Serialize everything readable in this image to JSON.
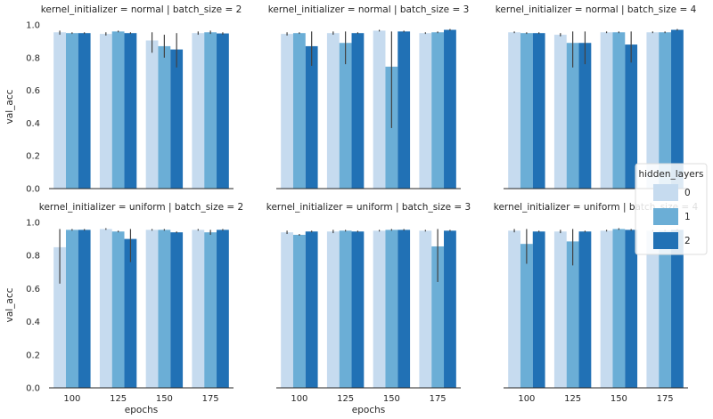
{
  "colors": {
    "0": "#c6dbef",
    "1": "#6baed6",
    "2": "#2171b5"
  },
  "chart_data": {
    "type": "bar",
    "grid": false,
    "ylim": [
      0,
      1.0
    ],
    "yticks": [
      "0.0",
      "0.2",
      "0.4",
      "0.6",
      "0.8",
      "1.0"
    ],
    "ylabel": "val_acc",
    "xlabel": "epochs",
    "categories": [
      "100",
      "125",
      "150",
      "175"
    ],
    "legend": {
      "title": "hidden_layers",
      "placement": "center-right",
      "labels": [
        "0",
        "1",
        "2"
      ]
    },
    "panels": [
      {
        "title": "kernel_initializer = normal | batch_size = 2",
        "series": [
          {
            "name": "0",
            "values": [
              0.955,
              0.945,
              0.905,
              0.95
            ],
            "err": [
              [
                0.94,
                0.965
              ],
              [
                0.935,
                0.955
              ],
              [
                0.83,
                0.955
              ],
              [
                0.94,
                0.96
              ]
            ]
          },
          {
            "name": "1",
            "values": [
              0.95,
              0.96,
              0.87,
              0.955
            ],
            "err": [
              [
                0.945,
                0.955
              ],
              [
                0.955,
                0.965
              ],
              [
                0.8,
                0.94
              ],
              [
                0.945,
                0.965
              ]
            ]
          },
          {
            "name": "2",
            "values": [
              0.95,
              0.95,
              0.85,
              0.948
            ],
            "err": [
              [
                0.945,
                0.955
              ],
              [
                0.945,
                0.955
              ],
              [
                0.74,
                0.95
              ],
              [
                0.94,
                0.955
              ]
            ]
          }
        ]
      },
      {
        "title": "kernel_initializer = normal | batch_size = 3",
        "series": [
          {
            "name": "0",
            "values": [
              0.945,
              0.95,
              0.965,
              0.95
            ],
            "err": [
              [
                0.935,
                0.955
              ],
              [
                0.94,
                0.96
              ],
              [
                0.96,
                0.97
              ],
              [
                0.945,
                0.955
              ]
            ]
          },
          {
            "name": "1",
            "values": [
              0.95,
              0.89,
              0.745,
              0.955
            ],
            "err": [
              [
                0.945,
                0.955
              ],
              [
                0.76,
                0.96
              ],
              [
                0.37,
                0.96
              ],
              [
                0.95,
                0.96
              ]
            ]
          },
          {
            "name": "2",
            "values": [
              0.87,
              0.95,
              0.96,
              0.97
            ],
            "err": [
              [
                0.75,
                0.96
              ],
              [
                0.945,
                0.955
              ],
              [
                0.955,
                0.965
              ],
              [
                0.965,
                0.975
              ]
            ]
          }
        ]
      },
      {
        "title": "kernel_initializer = normal | batch_size = 4",
        "series": [
          {
            "name": "0",
            "values": [
              0.955,
              0.94,
              0.955,
              0.955
            ],
            "err": [
              [
                0.95,
                0.96
              ],
              [
                0.93,
                0.95
              ],
              [
                0.95,
                0.96
              ],
              [
                0.95,
                0.96
              ]
            ]
          },
          {
            "name": "1",
            "values": [
              0.95,
              0.89,
              0.955,
              0.955
            ],
            "err": [
              [
                0.945,
                0.955
              ],
              [
                0.74,
                0.96
              ],
              [
                0.95,
                0.96
              ],
              [
                0.95,
                0.96
              ]
            ]
          },
          {
            "name": "2",
            "values": [
              0.95,
              0.89,
              0.88,
              0.97
            ],
            "err": [
              [
                0.945,
                0.955
              ],
              [
                0.76,
                0.96
              ],
              [
                0.77,
                0.96
              ],
              [
                0.965,
                0.975
              ]
            ]
          }
        ]
      },
      {
        "title": "kernel_initializer = uniform | batch_size = 2",
        "series": [
          {
            "name": "0",
            "values": [
              0.85,
              0.96,
              0.955,
              0.955
            ],
            "err": [
              [
                0.63,
                0.96
              ],
              [
                0.955,
                0.965
              ],
              [
                0.95,
                0.96
              ],
              [
                0.95,
                0.96
              ]
            ]
          },
          {
            "name": "1",
            "values": [
              0.955,
              0.945,
              0.955,
              0.94
            ],
            "err": [
              [
                0.95,
                0.96
              ],
              [
                0.94,
                0.95
              ],
              [
                0.95,
                0.96
              ],
              [
                0.925,
                0.955
              ]
            ]
          },
          {
            "name": "2",
            "values": [
              0.955,
              0.9,
              0.94,
              0.955
            ],
            "err": [
              [
                0.95,
                0.96
              ],
              [
                0.76,
                0.96
              ],
              [
                0.935,
                0.945
              ],
              [
                0.95,
                0.96
              ]
            ]
          }
        ]
      },
      {
        "title": "kernel_initializer = uniform | batch_size = 3",
        "series": [
          {
            "name": "0",
            "values": [
              0.94,
              0.945,
              0.95,
              0.95
            ],
            "err": [
              [
                0.93,
                0.95
              ],
              [
                0.935,
                0.955
              ],
              [
                0.945,
                0.955
              ],
              [
                0.945,
                0.955
              ]
            ]
          },
          {
            "name": "1",
            "values": [
              0.925,
              0.95,
              0.955,
              0.855
            ],
            "err": [
              [
                0.92,
                0.93
              ],
              [
                0.945,
                0.955
              ],
              [
                0.95,
                0.96
              ],
              [
                0.64,
                0.96
              ]
            ]
          },
          {
            "name": "2",
            "values": [
              0.945,
              0.945,
              0.955,
              0.95
            ],
            "err": [
              [
                0.94,
                0.95
              ],
              [
                0.94,
                0.95
              ],
              [
                0.95,
                0.96
              ],
              [
                0.945,
                0.955
              ]
            ]
          }
        ]
      },
      {
        "title": "kernel_initializer = uniform | batch_size = 4",
        "series": [
          {
            "name": "0",
            "values": [
              0.95,
              0.945,
              0.95,
              0.95
            ],
            "err": [
              [
                0.94,
                0.96
              ],
              [
                0.935,
                0.955
              ],
              [
                0.945,
                0.955
              ],
              [
                0.945,
                0.955
              ]
            ]
          },
          {
            "name": "1",
            "values": [
              0.87,
              0.885,
              0.96,
              0.95
            ],
            "err": [
              [
                0.75,
                0.96
              ],
              [
                0.74,
                0.96
              ],
              [
                0.955,
                0.965
              ],
              [
                0.945,
                0.955
              ]
            ]
          },
          {
            "name": "2",
            "values": [
              0.945,
              0.945,
              0.955,
              0.955
            ],
            "err": [
              [
                0.94,
                0.95
              ],
              [
                0.94,
                0.95
              ],
              [
                0.95,
                0.96
              ],
              [
                0.95,
                0.96
              ]
            ]
          }
        ]
      }
    ]
  }
}
